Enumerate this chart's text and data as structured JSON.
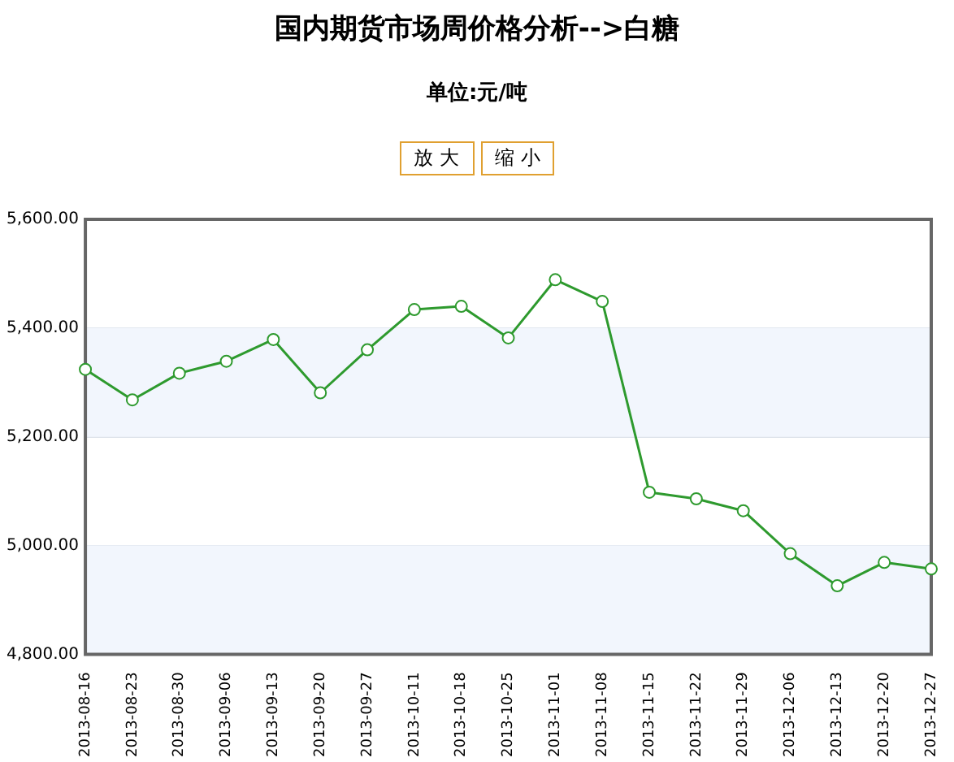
{
  "chart_data": {
    "type": "line",
    "title": "国内期货市场周价格分析-->白糖",
    "subtitle": "单位:元/吨",
    "annotations": [
      "放 大",
      "缩 小"
    ],
    "categories": [
      "2013-08-16",
      "2013-08-23",
      "2013-08-30",
      "2013-09-06",
      "2013-09-13",
      "2013-09-20",
      "2013-09-27",
      "2013-10-11",
      "2013-10-18",
      "2013-10-25",
      "2013-11-01",
      "2013-11-08",
      "2013-11-15",
      "2013-11-22",
      "2013-11-29",
      "2013-12-06",
      "2013-12-13",
      "2013-12-20",
      "2013-12-27"
    ],
    "series": [
      {
        "color": "#2e9a2e",
        "values": [
          5324,
          5268,
          5317,
          5339,
          5379,
          5281,
          5360,
          5434,
          5440,
          5382,
          5489,
          5449,
          5098,
          5086,
          5064,
          4985,
          4926,
          4969,
          4957
        ]
      }
    ],
    "ylim": [
      4800,
      5600
    ],
    "yticks": [
      {
        "value": 4800,
        "label": "4,800.00"
      },
      {
        "value": 5000,
        "label": "5,000.00"
      },
      {
        "value": 5200,
        "label": "5,200.00"
      },
      {
        "value": 5400,
        "label": "5,400.00"
      },
      {
        "value": 5600,
        "label": "5,600.00"
      }
    ],
    "bands": [
      {
        "axis": "y",
        "from": 4800,
        "to": 5000,
        "color": "#f2f6fd"
      },
      {
        "axis": "y",
        "from": 5200,
        "to": 5400,
        "color": "#f2f6fd"
      }
    ],
    "grid": "y",
    "legend": false,
    "marker": "circle",
    "line_style": "solid"
  }
}
